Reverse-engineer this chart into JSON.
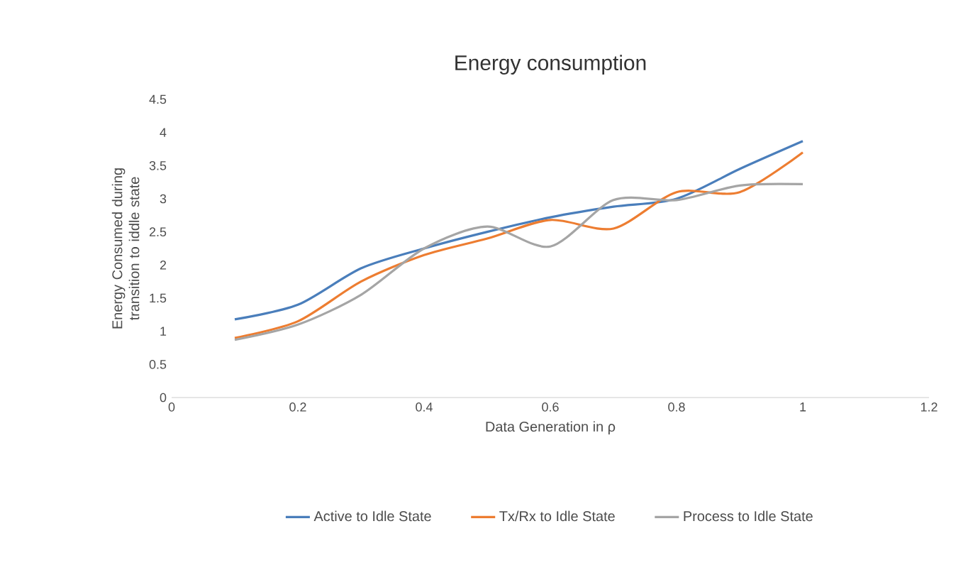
{
  "chart_data": {
    "type": "line",
    "title": "Energy consumption",
    "xlabel": "Data Generation  in ρ",
    "ylabel": "Energy Consumed during transition to iddle state",
    "x": [
      0.1,
      0.2,
      0.3,
      0.4,
      0.5,
      0.6,
      0.7,
      0.8,
      0.9,
      1.0
    ],
    "series": [
      {
        "name": "Active to Idle State",
        "color": "#4a7ebb",
        "values": [
          1.18,
          1.4,
          1.95,
          2.25,
          2.5,
          2.72,
          2.88,
          3.0,
          3.45,
          3.87
        ]
      },
      {
        "name": "Tx/Rx to Idle State",
        "color": "#ed7d31",
        "values": [
          0.9,
          1.15,
          1.75,
          2.15,
          2.4,
          2.68,
          2.55,
          3.1,
          3.1,
          3.7
        ]
      },
      {
        "name": "Process to Idle State",
        "color": "#a5a5a5",
        "values": [
          0.87,
          1.1,
          1.55,
          2.25,
          2.58,
          2.28,
          2.98,
          2.98,
          3.2,
          3.22
        ]
      }
    ],
    "xlim": [
      0,
      1.2
    ],
    "xticks": [
      0,
      0.2,
      0.4,
      0.6,
      0.8,
      1,
      1.2
    ],
    "ylim": [
      0,
      4.5
    ],
    "yticks": [
      0,
      0.5,
      1,
      1.5,
      2,
      2.5,
      3,
      3.5,
      4,
      4.5
    ],
    "grid": false,
    "legend": "bottom",
    "marker": "none",
    "line_style": "solid"
  }
}
